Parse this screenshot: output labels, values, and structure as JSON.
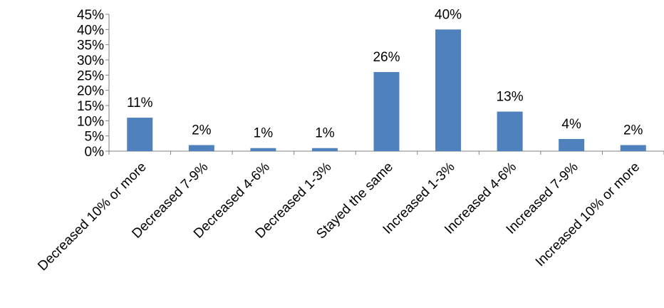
{
  "chart_data": {
    "type": "bar",
    "categories": [
      "Decreased 10% or more",
      "Decreased 7-9%",
      "Decreased 4-6%",
      "Decreased 1-3%",
      "Stayed the same",
      "Increased 1-3%",
      "Increased 4-6%",
      "Increased 7-9%",
      "Increased 10% or more"
    ],
    "values": [
      11,
      2,
      1,
      1,
      26,
      40,
      13,
      4,
      2
    ],
    "data_labels": [
      "11%",
      "2%",
      "1%",
      "1%",
      "26%",
      "40%",
      "13%",
      "4%",
      "2%"
    ],
    "y_ticks": [
      "0%",
      "5%",
      "10%",
      "15%",
      "20%",
      "25%",
      "30%",
      "35%",
      "40%",
      "45%"
    ],
    "ylim": [
      0,
      45
    ],
    "y_step": 5,
    "grid": false,
    "legend": "none",
    "bar_color": "#4F81BD",
    "title": "",
    "xlabel": "",
    "ylabel": ""
  }
}
